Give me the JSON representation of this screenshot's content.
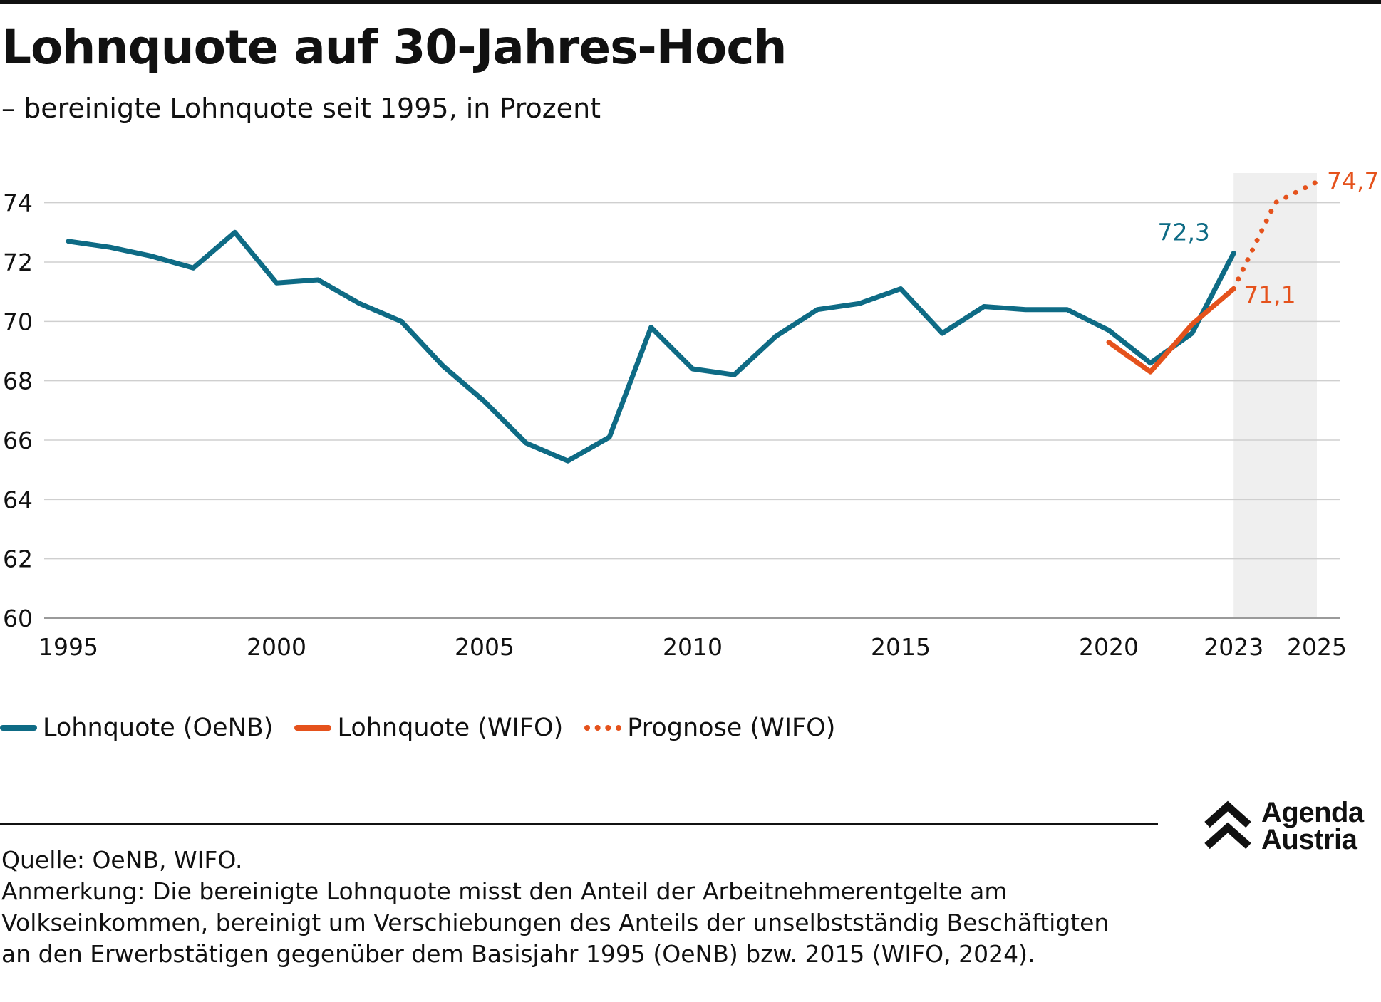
{
  "header": {
    "title": "Lohnquote auf 30-Jahres-Hoch",
    "subtitle": "– bereinigte Lohnquote seit 1995, in Prozent"
  },
  "colors": {
    "oenb": "#0e6b85",
    "wifo": "#e5521c",
    "forecast_band": "#efefef",
    "grid": "#cfcfcf",
    "text": "#111111"
  },
  "chart_data": {
    "type": "line",
    "title": "Lohnquote auf 30-Jahres-Hoch",
    "subtitle": "– bereinigte Lohnquote seit 1995, in Prozent",
    "xlabel": "",
    "ylabel": "",
    "xlim": [
      1995,
      2025
    ],
    "ylim": [
      60,
      75
    ],
    "x_ticks": [
      "1995",
      "2000",
      "2005",
      "2010",
      "2015",
      "2020",
      "2023",
      "2025"
    ],
    "y_ticks": [
      "60",
      "62",
      "64",
      "66",
      "68",
      "70",
      "72",
      "74"
    ],
    "grid": "horizontal",
    "forecast_band": [
      2023,
      2025
    ],
    "legend_position": "bottom-left",
    "series": [
      {
        "name": "Lohnquote (OeNB)",
        "style": "solid",
        "color": "#0e6b85",
        "x": [
          1995,
          1996,
          1997,
          1998,
          1999,
          2000,
          2001,
          2002,
          2003,
          2004,
          2005,
          2006,
          2007,
          2008,
          2009,
          2010,
          2011,
          2012,
          2013,
          2014,
          2015,
          2016,
          2017,
          2018,
          2019,
          2020,
          2021,
          2022,
          2023
        ],
        "y": [
          72.7,
          72.5,
          72.2,
          71.8,
          73.0,
          71.3,
          71.4,
          70.6,
          70.0,
          68.5,
          67.3,
          65.9,
          65.3,
          66.1,
          69.8,
          68.4,
          68.2,
          69.5,
          70.4,
          70.6,
          71.1,
          69.6,
          70.5,
          70.4,
          70.4,
          69.7,
          68.6,
          69.6,
          72.3
        ],
        "end_label": "72,3"
      },
      {
        "name": "Lohnquote (WIFO)",
        "style": "solid",
        "color": "#e5521c",
        "x": [
          2020,
          2021,
          2022,
          2023
        ],
        "y": [
          69.3,
          68.3,
          69.9,
          71.1
        ],
        "end_label": "71,1"
      },
      {
        "name": "Prognose (WIFO)",
        "style": "dotted",
        "color": "#e5521c",
        "x": [
          2023,
          2024,
          2025
        ],
        "y": [
          71.1,
          74.0,
          74.7
        ],
        "end_label": "74,7"
      }
    ]
  },
  "legend": {
    "items": [
      {
        "label": "Lohnquote (OeNB)"
      },
      {
        "label": "Lohnquote (WIFO)"
      },
      {
        "label": "Prognose (WIFO)"
      }
    ]
  },
  "footer": {
    "source": "Quelle: OeNB, WIFO.",
    "note": "Anmerkung: Die bereinigte Lohnquote misst den Anteil der Arbeitnehmerentgelte am Volkseinkommen, bereinigt um Verschiebungen des Anteils der unselbstständig Beschäftigten an den Erwerbstätigen gegenüber dem Basisjahr 1995 (OeNB) bzw. 2015 (WIFO, 2024)."
  },
  "logo": {
    "line1": "Agenda",
    "line2": "Austria"
  }
}
